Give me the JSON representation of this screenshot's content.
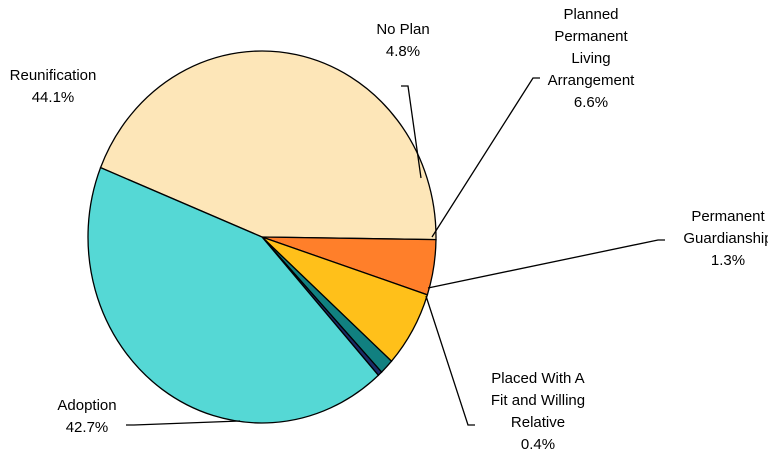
{
  "chart_data": {
    "type": "pie",
    "title": "",
    "slices": [
      {
        "label_lines": [
          "Reunification",
          "44.1%"
        ],
        "value": 44.1,
        "color": "#FDE6B8"
      },
      {
        "label_lines": [
          "No Plan",
          "4.8%"
        ],
        "value": 4.8,
        "color": "#FF7F2A"
      },
      {
        "label_lines": [
          "Planned",
          "Permanent",
          "Living",
          "Arrangement",
          "6.6%"
        ],
        "value": 6.6,
        "color": "#FFC01A"
      },
      {
        "label_lines": [
          "Permanent",
          "Guardianship",
          "1.3%"
        ],
        "value": 1.3,
        "color": "#118080"
      },
      {
        "label_lines": [
          "Placed With A",
          "Fit and Willing",
          "Relative",
          "0.4%"
        ],
        "value": 0.4,
        "color": "#1A2A66"
      },
      {
        "label_lines": [
          "Adoption",
          "42.7%"
        ],
        "value": 42.7,
        "color": "#55D8D5"
      }
    ],
    "legend": "none"
  }
}
